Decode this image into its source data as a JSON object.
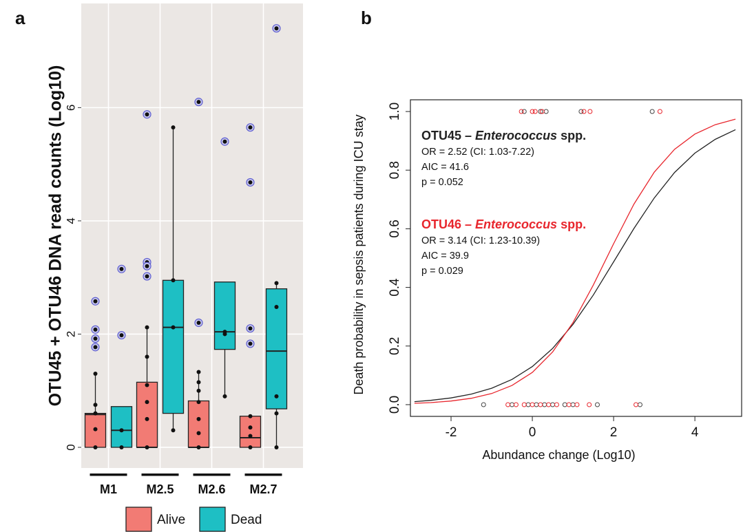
{
  "chart_data": [
    {
      "type": "box",
      "panel": "a",
      "ylabel": "OTU45 + OTU46 DNA read counts (Log10)",
      "categories": [
        "M1",
        "M2.5",
        "M2.6",
        "M2.7"
      ],
      "ylim": [
        -0.365,
        7.84
      ],
      "yticks": [
        0,
        2,
        4,
        6
      ],
      "grid": true,
      "legend": "bottom",
      "series": [
        {
          "name": "Alive",
          "color": "#f27b74",
          "boxes": [
            {
              "min": 0,
              "q1": 0,
              "median": 0.58,
              "q3": 0.6,
              "max": 1.3,
              "outliers": [
                2.58,
                2.08,
                1.92,
                1.77
              ],
              "points": [
                0,
                0.32,
                0.6,
                0.75,
                1.3
              ]
            },
            {
              "min": 0,
              "q1": 0,
              "median": 0,
              "q3": 1.15,
              "max": 2.12,
              "outliers": [
                5.88,
                3.27,
                3.2,
                3.02
              ],
              "points": [
                0,
                0.5,
                0.8,
                1.1,
                1.6,
                2.12
              ]
            },
            {
              "min": 0,
              "q1": 0,
              "median": 0,
              "q3": 0.82,
              "max": 1.33,
              "outliers": [
                6.1,
                2.2
              ],
              "points": [
                0,
                0.25,
                0.5,
                0.8,
                1.0,
                1.15,
                1.33
              ]
            },
            {
              "min": 0,
              "q1": 0,
              "median": 0.17,
              "q3": 0.55,
              "max": 0.55,
              "outliers": [
                5.65,
                4.68,
                2.1,
                1.83
              ],
              "points": [
                0,
                0.2,
                0.35,
                0.55
              ]
            }
          ]
        },
        {
          "name": "Dead",
          "color": "#1ebfc4",
          "boxes": [
            {
              "min": 0,
              "q1": 0,
              "median": 0.3,
              "q3": 0.72,
              "max": 0.72,
              "outliers": [
                3.15,
                1.98
              ],
              "points": [
                0,
                0.3
              ]
            },
            {
              "min": 0.3,
              "q1": 0.6,
              "median": 2.12,
              "q3": 2.95,
              "max": 5.65,
              "outliers": [],
              "points": [
                0.3,
                2.12,
                2.95,
                5.65
              ]
            },
            {
              "min": 0.9,
              "q1": 1.73,
              "median": 2.04,
              "q3": 2.92,
              "max": 2.92,
              "outliers": [
                5.4
              ],
              "points": [
                0.9,
                2.0,
                2.04
              ]
            },
            {
              "min": 0,
              "q1": 0.68,
              "median": 1.7,
              "q3": 2.8,
              "max": 2.9,
              "outliers": [
                7.4
              ],
              "points": [
                0,
                0.6,
                0.9,
                2.48,
                2.9
              ]
            }
          ]
        }
      ]
    },
    {
      "type": "logistic",
      "panel": "b",
      "xlabel": "Abundance change (Log10)",
      "ylabel": "Death probability in sepsis patients during ICU stay",
      "xlim": [
        -3.0,
        5.15
      ],
      "ylim": [
        -0.04,
        1.04
      ],
      "xticks": [
        -2,
        0,
        2,
        4
      ],
      "yticks": [
        {
          "value": 0,
          "label": "0.0"
        },
        {
          "value": 0.2,
          "label": "0.2"
        },
        {
          "value": 0.4,
          "label": "0.4"
        },
        {
          "value": 0.6,
          "label": "0.6"
        },
        {
          "value": 0.8,
          "label": "0.8"
        },
        {
          "value": 1,
          "label": "1.0"
        }
      ],
      "curves": [
        {
          "color": "#222222",
          "x": [
            -2.9,
            -2.5,
            -2,
            -1.5,
            -1,
            -0.5,
            0,
            0.5,
            1,
            1.5,
            2,
            2.5,
            3,
            3.5,
            4,
            4.5,
            5
          ],
          "values": [
            0.0102,
            0.0146,
            0.023,
            0.0361,
            0.056,
            0.0861,
            0.13,
            0.192,
            0.274,
            0.374,
            0.487,
            0.601,
            0.705,
            0.792,
            0.858,
            0.905,
            0.938
          ]
        },
        {
          "color": "#e8262d",
          "x": [
            -2.9,
            -2.5,
            -2,
            -1.5,
            -1,
            -0.5,
            0,
            0.5,
            1,
            1.5,
            2,
            2.5,
            3,
            3.5,
            4,
            4.5,
            5
          ],
          "values": [
            0.0045,
            0.007,
            0.0124,
            0.0218,
            0.0379,
            0.0653,
            0.11,
            0.18,
            0.28,
            0.408,
            0.549,
            0.684,
            0.793,
            0.871,
            0.923,
            0.955,
            0.974
          ]
        }
      ],
      "observations": [
        {
          "color": "#444444",
          "x": [
            -0.2,
            0.2,
            0.34,
            1.2,
            2.95,
            -1.2,
            -0.5,
            -0.1,
            0.1,
            0.3,
            0.5,
            0.8,
            1.0,
            1.6,
            2.65
          ],
          "values": [
            1,
            1,
            1,
            1,
            1,
            0,
            0,
            0,
            0,
            0,
            0,
            0,
            0,
            0,
            0
          ]
        },
        {
          "color": "#e8262d",
          "x": [
            -0.27,
            0,
            0.07,
            0.24,
            1.27,
            1.42,
            3.14,
            -0.6,
            -0.4,
            -0.2,
            0,
            0.2,
            0.4,
            0.6,
            0.9,
            1.1,
            1.4,
            2.55
          ],
          "values": [
            1,
            1,
            1,
            1,
            1,
            1,
            1,
            0,
            0,
            0,
            0,
            0,
            0,
            0,
            0,
            0,
            0,
            0
          ]
        }
      ],
      "annotations": [
        {
          "color": "#222222",
          "title": [
            "OTU45 – ",
            "Enterococcus",
            " spp."
          ],
          "lines": [
            "OR = 2.52 (CI: 1.03-7.22)",
            "AIC = 41.6",
            "p = 0.052"
          ]
        },
        {
          "color": "#e8262d",
          "title": [
            "OTU46 – ",
            "Enterococcus",
            " spp."
          ],
          "lines": [
            "OR = 3.14 (CI: 1.23-10.39)",
            "AIC = 39.9",
            "p = 0.029"
          ]
        }
      ]
    }
  ]
}
